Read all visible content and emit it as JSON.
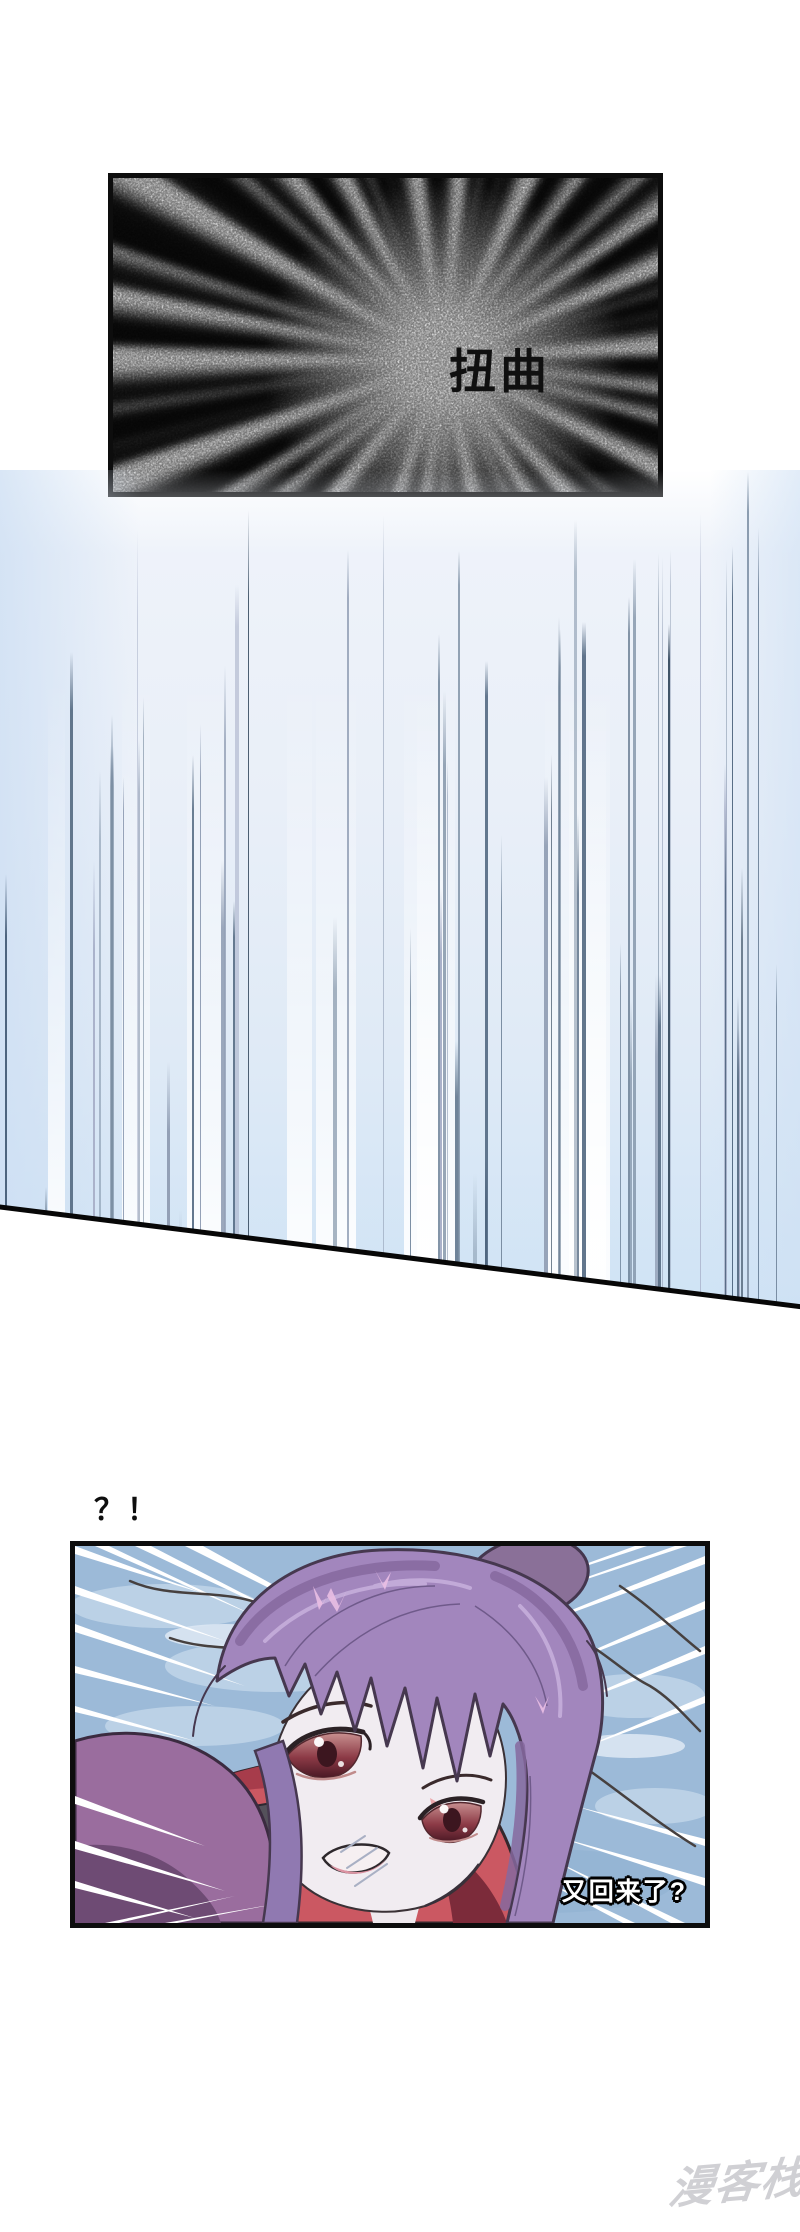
{
  "top_panel": {
    "sfx_label": "扭曲"
  },
  "middle": {
    "interjection_label": "？！"
  },
  "bottom_panel": {
    "dialogue_label": "又回来了?"
  },
  "watermark": {
    "label": "漫客栈"
  },
  "colors": {
    "panel_border": "#0d0d0d",
    "speed_line_palette": [
      "#3e5266",
      "#49607a",
      "#5d7289",
      "#7b8ea3",
      "#93a0b6",
      "#a6aec7"
    ],
    "speed_bg_bottom": "#cfe3f5",
    "scene_bg_blue": "#9cbad8",
    "scene_bg_light_patch": "#c3d7ea",
    "hair_purple": "#a286bd",
    "hair_shadow": "#86699f",
    "hair_bun": "#8a7098",
    "jacket_red": "#cb5862",
    "collar_grey": "#54515a",
    "shoulder_purple": "#9a6d9e",
    "skin": "#f1ecf1",
    "iris_maroon": "#6e2737",
    "dialogue_fill": "#ffffff",
    "dialogue_stroke": "#000000"
  }
}
